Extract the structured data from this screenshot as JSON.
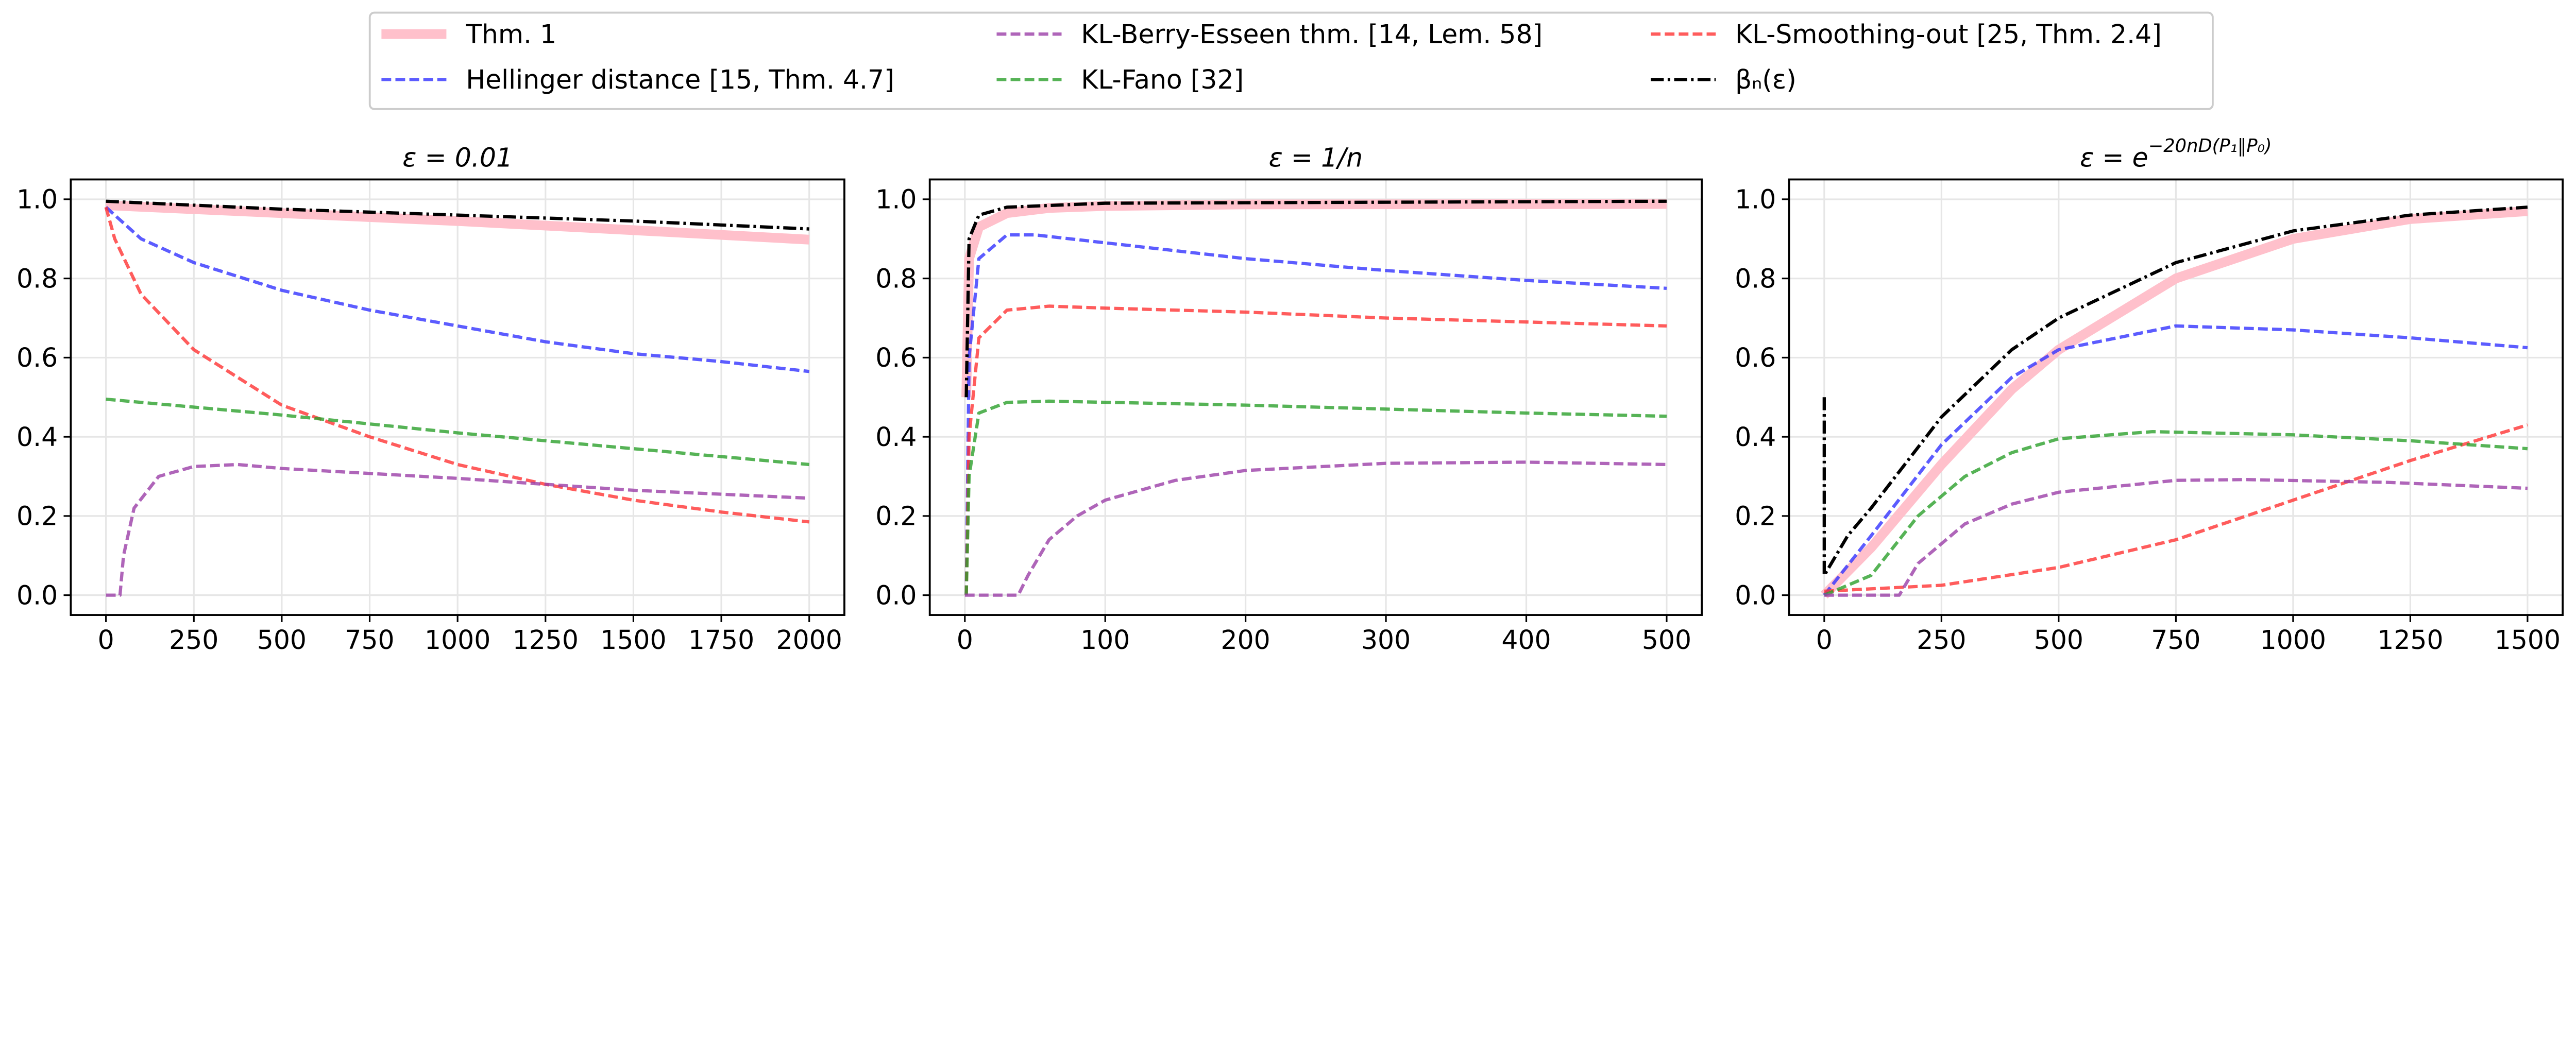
{
  "legend": [
    {
      "key": "thm1",
      "label": "Thm. 1",
      "color": "#ffc0cb",
      "style": "solid"
    },
    {
      "key": "hell",
      "label": "Hellinger distance [15, Thm. 4.7]",
      "color": "#3333ff",
      "style": "dashed"
    },
    {
      "key": "berry",
      "label": "KL-Berry-Esseen thm. [14, Lem. 58]",
      "color": "#9b3fa8",
      "style": "dashed"
    },
    {
      "key": "fano",
      "label": "KL-Fano [32]",
      "color": "#2ca02c",
      "style": "dashed"
    },
    {
      "key": "smooth",
      "label": "KL-Smoothing-out [25, Thm. 2.4]",
      "color": "#ff3333",
      "style": "dashed"
    },
    {
      "key": "beta",
      "label": "βₙ(ε)",
      "color": "#000000",
      "style": "dashdot"
    }
  ],
  "chart_data": [
    {
      "type": "line",
      "title": "ε = 0.01",
      "title_sup": "",
      "xlim": [
        -100,
        2100
      ],
      "ylim": [
        -0.05,
        1.05
      ],
      "xticks": [
        0,
        250,
        500,
        750,
        1000,
        1250,
        1500,
        1750,
        2000
      ],
      "yticks": [
        0.0,
        0.2,
        0.4,
        0.6,
        0.8,
        1.0
      ],
      "grid": true,
      "series": {
        "thm1": [
          [
            0,
            0.985
          ],
          [
            500,
            0.965
          ],
          [
            1000,
            0.945
          ],
          [
            1500,
            0.922
          ],
          [
            2000,
            0.898
          ]
        ],
        "hell": [
          [
            0,
            0.98
          ],
          [
            100,
            0.9
          ],
          [
            250,
            0.84
          ],
          [
            500,
            0.77
          ],
          [
            750,
            0.72
          ],
          [
            1000,
            0.68
          ],
          [
            1250,
            0.64
          ],
          [
            1500,
            0.61
          ],
          [
            1750,
            0.59
          ],
          [
            2000,
            0.565
          ]
        ],
        "smooth": [
          [
            0,
            0.98
          ],
          [
            25,
            0.9
          ],
          [
            100,
            0.76
          ],
          [
            250,
            0.62
          ],
          [
            500,
            0.48
          ],
          [
            750,
            0.4
          ],
          [
            1000,
            0.33
          ],
          [
            1250,
            0.28
          ],
          [
            1500,
            0.24
          ],
          [
            1750,
            0.21
          ],
          [
            2000,
            0.185
          ]
        ],
        "fano": [
          [
            0,
            0.495
          ],
          [
            500,
            0.455
          ],
          [
            1000,
            0.41
          ],
          [
            1500,
            0.37
          ],
          [
            2000,
            0.33
          ]
        ],
        "berry": [
          [
            0,
            0
          ],
          [
            40,
            0
          ],
          [
            50,
            0.1
          ],
          [
            80,
            0.22
          ],
          [
            150,
            0.3
          ],
          [
            250,
            0.325
          ],
          [
            375,
            0.33
          ],
          [
            500,
            0.32
          ],
          [
            1000,
            0.295
          ],
          [
            1500,
            0.265
          ],
          [
            2000,
            0.245
          ]
        ],
        "beta": [
          [
            0,
            0.995
          ],
          [
            500,
            0.975
          ],
          [
            1000,
            0.96
          ],
          [
            1500,
            0.945
          ],
          [
            2000,
            0.925
          ]
        ]
      }
    },
    {
      "type": "line",
      "title": "ε = 1/n",
      "title_sup": "",
      "xlim": [
        -25,
        525
      ],
      "ylim": [
        -0.05,
        1.05
      ],
      "xticks": [
        0,
        100,
        200,
        300,
        400,
        500
      ],
      "yticks": [
        0.0,
        0.2,
        0.4,
        0.6,
        0.8,
        1.0
      ],
      "grid": true,
      "series": {
        "thm1": [
          [
            1,
            0.5
          ],
          [
            3,
            0.85
          ],
          [
            10,
            0.93
          ],
          [
            30,
            0.965
          ],
          [
            60,
            0.978
          ],
          [
            100,
            0.983
          ],
          [
            200,
            0.987
          ],
          [
            500,
            0.988
          ]
        ],
        "hell": [
          [
            1,
            0
          ],
          [
            3,
            0.6
          ],
          [
            10,
            0.85
          ],
          [
            30,
            0.91
          ],
          [
            50,
            0.91
          ],
          [
            100,
            0.89
          ],
          [
            200,
            0.85
          ],
          [
            300,
            0.82
          ],
          [
            400,
            0.795
          ],
          [
            500,
            0.775
          ]
        ],
        "smooth": [
          [
            1,
            0
          ],
          [
            3,
            0.4
          ],
          [
            10,
            0.65
          ],
          [
            30,
            0.72
          ],
          [
            60,
            0.73
          ],
          [
            100,
            0.725
          ],
          [
            200,
            0.715
          ],
          [
            300,
            0.7
          ],
          [
            400,
            0.69
          ],
          [
            500,
            0.68
          ]
        ],
        "fano": [
          [
            1,
            0
          ],
          [
            3,
            0.3
          ],
          [
            10,
            0.46
          ],
          [
            30,
            0.487
          ],
          [
            60,
            0.49
          ],
          [
            200,
            0.48
          ],
          [
            300,
            0.47
          ],
          [
            400,
            0.46
          ],
          [
            500,
            0.452
          ]
        ],
        "berry": [
          [
            0,
            0
          ],
          [
            38,
            0
          ],
          [
            45,
            0.05
          ],
          [
            60,
            0.14
          ],
          [
            80,
            0.2
          ],
          [
            100,
            0.24
          ],
          [
            150,
            0.29
          ],
          [
            200,
            0.315
          ],
          [
            300,
            0.333
          ],
          [
            400,
            0.336
          ],
          [
            500,
            0.33
          ]
        ],
        "beta": [
          [
            1,
            0.5
          ],
          [
            3,
            0.9
          ],
          [
            10,
            0.96
          ],
          [
            30,
            0.98
          ],
          [
            100,
            0.99
          ],
          [
            500,
            0.995
          ]
        ]
      }
    },
    {
      "type": "line",
      "title": "ε = e",
      "title_sup": "−20nD(P₁‖P₀)",
      "xlim": [
        -75,
        1575
      ],
      "ylim": [
        -0.05,
        1.05
      ],
      "xticks": [
        0,
        250,
        500,
        750,
        1000,
        1250,
        1500
      ],
      "yticks": [
        0.0,
        0.2,
        0.4,
        0.6,
        0.8,
        1.0
      ],
      "grid": true,
      "series": {
        "thm1": [
          [
            0,
            0
          ],
          [
            100,
            0.12
          ],
          [
            250,
            0.33
          ],
          [
            400,
            0.52
          ],
          [
            500,
            0.62
          ],
          [
            750,
            0.8
          ],
          [
            1000,
            0.9
          ],
          [
            1250,
            0.95
          ],
          [
            1500,
            0.97
          ]
        ],
        "hell": [
          [
            0,
            0
          ],
          [
            100,
            0.15
          ],
          [
            250,
            0.38
          ],
          [
            400,
            0.55
          ],
          [
            500,
            0.62
          ],
          [
            750,
            0.68
          ],
          [
            1000,
            0.67
          ],
          [
            1250,
            0.65
          ],
          [
            1500,
            0.625
          ]
        ],
        "smooth": [
          [
            0,
            0.01
          ],
          [
            250,
            0.025
          ],
          [
            500,
            0.07
          ],
          [
            750,
            0.14
          ],
          [
            1000,
            0.24
          ],
          [
            1250,
            0.34
          ],
          [
            1500,
            0.43
          ]
        ],
        "fano": [
          [
            0,
            0
          ],
          [
            100,
            0.05
          ],
          [
            200,
            0.2
          ],
          [
            300,
            0.3
          ],
          [
            400,
            0.36
          ],
          [
            500,
            0.395
          ],
          [
            700,
            0.413
          ],
          [
            1000,
            0.405
          ],
          [
            1250,
            0.39
          ],
          [
            1500,
            0.37
          ]
        ],
        "berry": [
          [
            0,
            0
          ],
          [
            160,
            0
          ],
          [
            200,
            0.08
          ],
          [
            300,
            0.18
          ],
          [
            400,
            0.23
          ],
          [
            500,
            0.26
          ],
          [
            750,
            0.29
          ],
          [
            900,
            0.292
          ],
          [
            1200,
            0.285
          ],
          [
            1500,
            0.27
          ]
        ],
        "beta": [
          [
            0,
            0.5
          ],
          [
            0,
            0.05
          ],
          [
            50,
            0.15
          ],
          [
            100,
            0.22
          ],
          [
            250,
            0.45
          ],
          [
            400,
            0.62
          ],
          [
            500,
            0.7
          ],
          [
            750,
            0.84
          ],
          [
            1000,
            0.92
          ],
          [
            1250,
            0.96
          ],
          [
            1500,
            0.98
          ]
        ]
      }
    }
  ]
}
